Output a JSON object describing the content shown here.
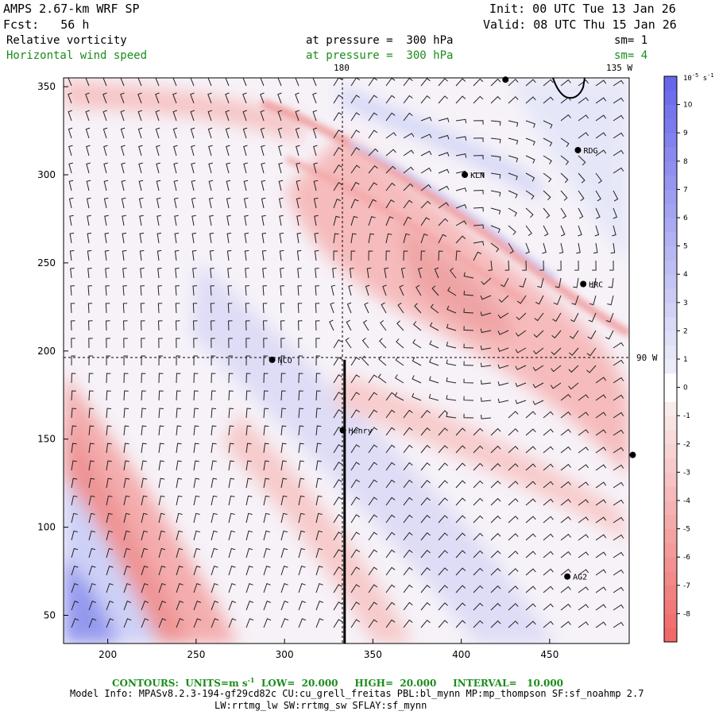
{
  "header": {
    "model": "AMPS 2.67-km WRF SP",
    "forecast": "Fcst:   56 h",
    "init": "Init: 00 UTC Tue 13 Jan 26",
    "valid": "Valid: 08 UTC Thu 15 Jan 26",
    "field1_name": "Relative vorticity",
    "field1_level": "at pressure =  300 hPa",
    "field1_sm": "sm= 1",
    "field2_name": "Horizontal wind speed",
    "field2_level": "at pressure =  300 hPa",
    "field2_sm": "sm= 4"
  },
  "map": {
    "meridian_label_top": "180",
    "meridian_label_corner": "135 W",
    "meridian_label_right": "90 W",
    "stations": [
      {
        "name": "RDG",
        "x": 466,
        "y": 314
      },
      {
        "name": "KLN",
        "x": 402,
        "y": 300
      },
      {
        "name": "HRC",
        "x": 469,
        "y": 238
      },
      {
        "name": "NCO",
        "x": 293,
        "y": 195
      },
      {
        "name": "Henry",
        "x": 333,
        "y": 155
      },
      {
        "name": "AG2",
        "x": 460,
        "y": 72
      },
      {
        "name": "",
        "x": 425,
        "y": 354
      },
      {
        "name": "",
        "x": 497,
        "y": 141
      }
    ],
    "cross_section": {
      "x": 334,
      "y_from": 34,
      "y_to": 195
    }
  },
  "chart_data": {
    "type": "heatmap",
    "title": "Relative vorticity / Horizontal wind speed at 300 hPa",
    "x_ticks": [
      200,
      250,
      300,
      350,
      400,
      450
    ],
    "y_ticks": [
      50,
      100,
      150,
      200,
      250,
      300,
      350
    ],
    "xlim": [
      175,
      495
    ],
    "ylim": [
      34,
      355
    ],
    "colorbar": {
      "unit_label": "10^-5 s^-1",
      "unit_base": "10",
      "unit_exp": "-5",
      "unit_suffix": "s",
      "unit_suffix_exp": "-1",
      "levels": [
        "10",
        "9",
        "8",
        "7",
        "6",
        "5",
        "4",
        "3",
        "2",
        "1",
        "0",
        "-1",
        "-2",
        "-3",
        "-4",
        "-5",
        "-6",
        "-7",
        "-8"
      ],
      "range": [
        -9,
        11
      ]
    }
  },
  "footer": {
    "contours_label": "CONTOURS:  UNITS=m s",
    "contours_units_exp": "-1",
    "contours_rest": "  LOW=  20.000     HIGH=  20.000     INTERVAL=   10.000",
    "info_line1": "Model Info: MPASv8.2.3-194-gf29cd82c CU:cu_grell_freitas PBL:bl_mynn MP:mp_thompson SF:sf_noahmp 2.7",
    "info_line2": "LW:rrtmg_lw SW:rrtmg_sw SFLAY:sf_mynn"
  }
}
